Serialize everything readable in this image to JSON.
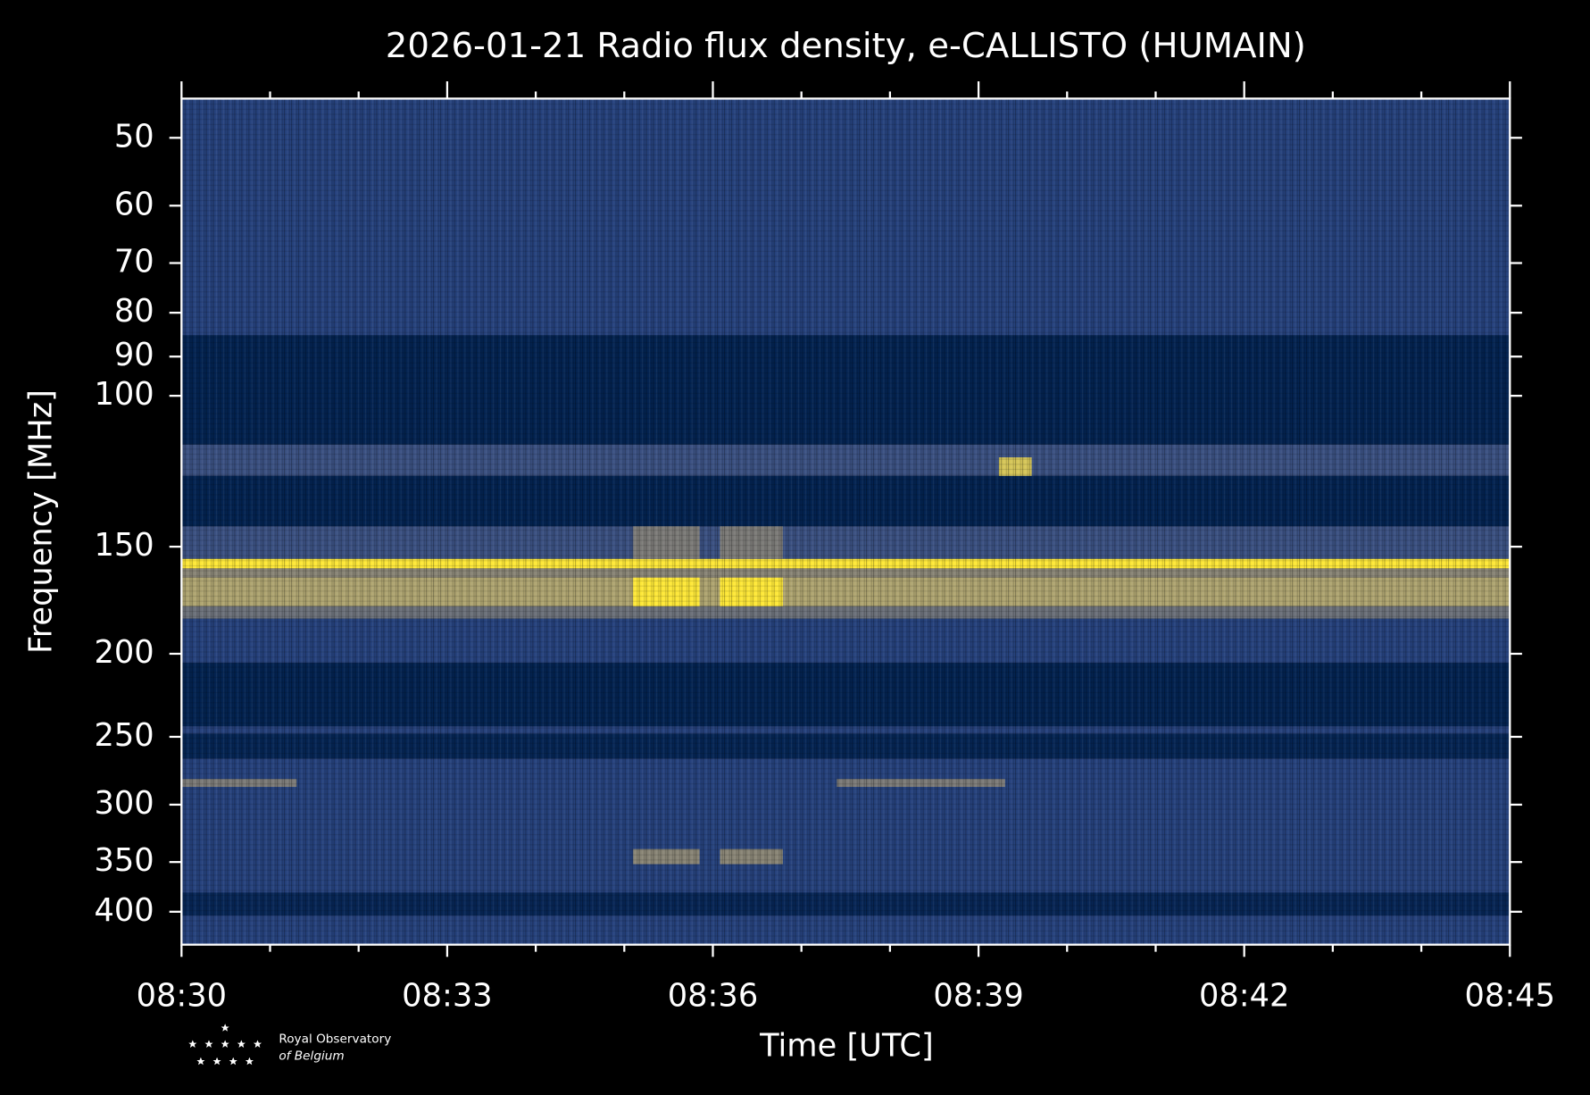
{
  "chart_data": {
    "type": "spectrogram",
    "title": "2026-01-21 Radio flux density, e-CALLISTO (HUMAIN)",
    "x_label": "Time [UTC]",
    "y_label": "Frequency [MHz]",
    "xlim": [
      0,
      15
    ],
    "xticks": [
      {
        "value": 0,
        "label": "08:30"
      },
      {
        "value": 3,
        "label": "08:33"
      },
      {
        "value": 6,
        "label": "08:36"
      },
      {
        "value": 9,
        "label": "08:39"
      },
      {
        "value": 12,
        "label": "08:42"
      },
      {
        "value": 15,
        "label": "08:45"
      }
    ],
    "xminor": [
      1,
      2,
      4,
      5,
      7,
      8,
      10,
      11,
      13,
      14
    ],
    "ylim": [
      45,
      437
    ],
    "y_inverted": true,
    "log_y": true,
    "yticks": [
      50,
      60,
      70,
      80,
      90,
      100,
      150,
      200,
      250,
      300,
      350,
      400
    ],
    "colormap": [
      "#00204d",
      "#2b4784",
      "#7c7b78",
      "#bcaf6f",
      "#fee838"
    ],
    "bands": [
      {
        "f0": 45,
        "f1": 85,
        "level": 0.22
      },
      {
        "f0": 85,
        "f1": 114,
        "level": 0.02
      },
      {
        "f0": 114,
        "f1": 124,
        "level": 0.3
      },
      {
        "f0": 124,
        "f1": 142,
        "level": 0.02
      },
      {
        "f0": 142,
        "f1": 155,
        "level": 0.3
      },
      {
        "f0": 155,
        "f1": 159,
        "level": 1
      },
      {
        "f0": 159,
        "f1": 163,
        "level": 0.55
      },
      {
        "f0": 163,
        "f1": 176,
        "level": 0.7
      },
      {
        "f0": 176,
        "f1": 182,
        "level": 0.45
      },
      {
        "f0": 182,
        "f1": 205,
        "level": 0.22
      },
      {
        "f0": 205,
        "f1": 243,
        "level": 0.02
      },
      {
        "f0": 243,
        "f1": 248,
        "level": 0.22
      },
      {
        "f0": 248,
        "f1": 265,
        "level": 0.03
      },
      {
        "f0": 265,
        "f1": 380,
        "level": 0.22
      },
      {
        "f0": 380,
        "f1": 404,
        "level": 0.04
      },
      {
        "f0": 404,
        "f1": 437,
        "level": 0.22
      }
    ],
    "bursts": [
      {
        "t0": 5.1,
        "t1": 5.85,
        "f0": 163,
        "f1": 176,
        "level": 1
      },
      {
        "t0": 6.08,
        "t1": 6.79,
        "f0": 163,
        "f1": 176,
        "level": 1
      },
      {
        "t0": 5.1,
        "t1": 5.85,
        "f0": 142,
        "f1": 155,
        "level": 0.5
      },
      {
        "t0": 6.08,
        "t1": 6.79,
        "f0": 142,
        "f1": 155,
        "level": 0.5
      },
      {
        "t0": 5.1,
        "t1": 5.85,
        "f0": 338,
        "f1": 352,
        "level": 0.55
      },
      {
        "t0": 6.08,
        "t1": 6.79,
        "f0": 338,
        "f1": 352,
        "level": 0.55
      },
      {
        "t0": 9.23,
        "t1": 9.6,
        "f0": 118,
        "f1": 124,
        "level": 0.85
      },
      {
        "t0": 0,
        "t1": 1.3,
        "f0": 280,
        "f1": 286,
        "level": 0.5
      },
      {
        "t0": 7.4,
        "t1": 9.3,
        "f0": 280,
        "f1": 286,
        "level": 0.5
      }
    ],
    "logo": [
      "Royal Observatory",
      "of Belgium"
    ]
  }
}
